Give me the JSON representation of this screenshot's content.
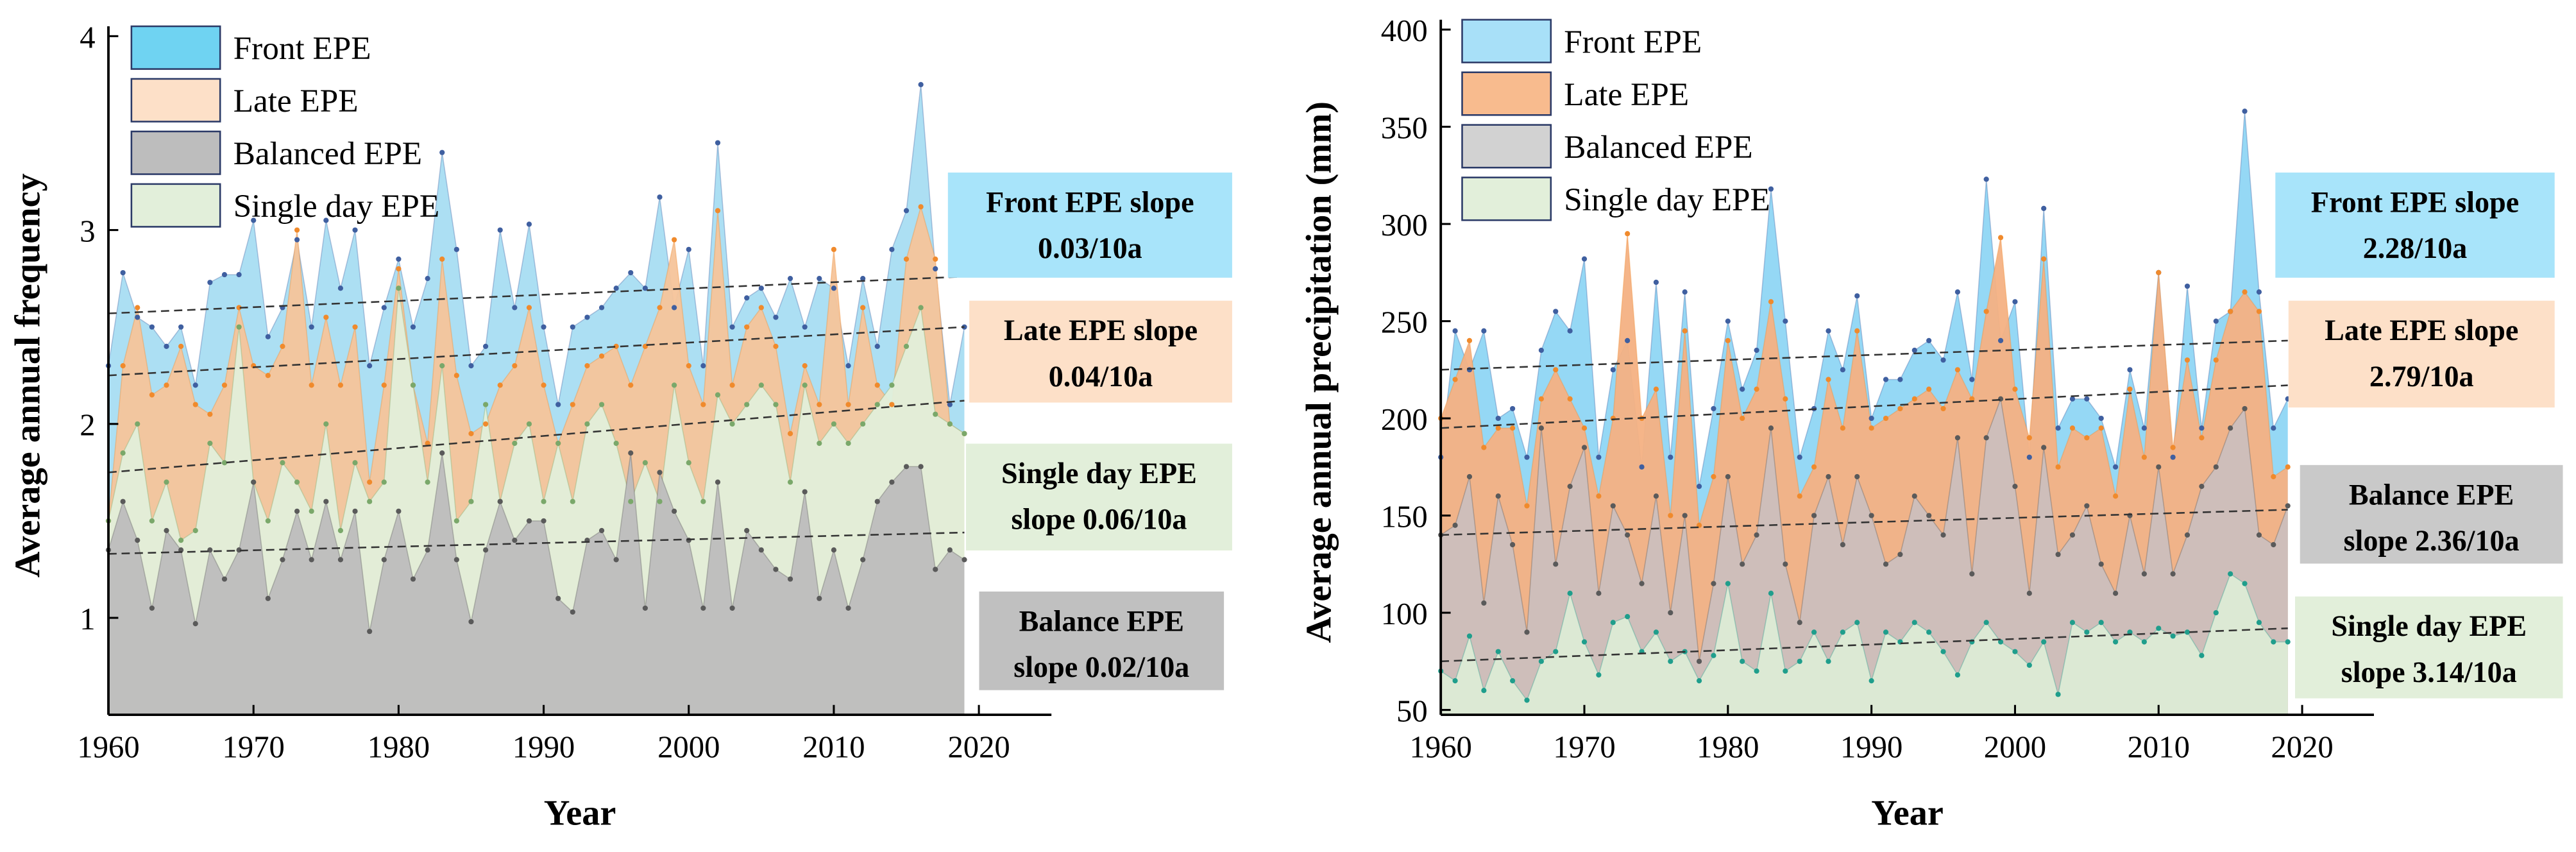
{
  "chart_data": [
    {
      "type": "area",
      "xlabel": "Year",
      "ylabel": "Average annual frequency",
      "x": [
        1960,
        1961,
        1962,
        1963,
        1964,
        1965,
        1966,
        1967,
        1968,
        1969,
        1970,
        1971,
        1972,
        1973,
        1974,
        1975,
        1976,
        1977,
        1978,
        1979,
        1980,
        1981,
        1982,
        1983,
        1984,
        1985,
        1986,
        1987,
        1988,
        1989,
        1990,
        1991,
        1992,
        1993,
        1994,
        1995,
        1996,
        1997,
        1998,
        1999,
        2000,
        2001,
        2002,
        2003,
        2004,
        2005,
        2006,
        2007,
        2008,
        2009,
        2010,
        2011,
        2012,
        2013,
        2014,
        2015,
        2016,
        2017,
        2018,
        2019
      ],
      "xlim": [
        1960,
        2025
      ],
      "xticks": [
        1960,
        1970,
        1980,
        1990,
        2000,
        2010,
        2020
      ],
      "ylim": [
        0.5,
        4
      ],
      "yticks": [
        1,
        2,
        3,
        4
      ],
      "series": [
        {
          "name": "Front EPE",
          "color": "#a8ddf2",
          "legend_color": "#6fd3f2",
          "marker_color": "#3f5fa0",
          "trend": [
            2.57,
            2.76
          ],
          "values": [
            2.3,
            2.78,
            2.55,
            2.5,
            2.4,
            2.5,
            2.2,
            2.73,
            2.77,
            2.77,
            3.05,
            2.45,
            2.6,
            2.95,
            2.5,
            3.05,
            2.7,
            3.0,
            2.3,
            2.6,
            2.85,
            2.5,
            2.75,
            3.4,
            2.9,
            2.3,
            2.4,
            3.0,
            2.6,
            3.03,
            2.5,
            2.1,
            2.5,
            2.55,
            2.6,
            2.7,
            2.78,
            2.7,
            3.17,
            2.6,
            2.9,
            2.3,
            3.45,
            2.5,
            2.65,
            2.7,
            2.55,
            2.75,
            2.5,
            2.75,
            2.7,
            2.3,
            2.75,
            2.4,
            2.9,
            3.1,
            3.75,
            2.8,
            2.1,
            2.5
          ]
        },
        {
          "name": "Late EPE",
          "color": "#f5c49a",
          "legend_color": "#fde0c8",
          "marker_color": "#f08a2c",
          "trend": [
            2.25,
            2.5
          ],
          "values": [
            1.5,
            2.3,
            2.6,
            2.15,
            2.2,
            2.4,
            2.1,
            2.05,
            2.2,
            2.6,
            2.3,
            2.25,
            2.4,
            3.0,
            2.2,
            2.55,
            2.2,
            2.5,
            1.7,
            2.2,
            2.8,
            2.2,
            1.9,
            2.85,
            2.25,
            1.95,
            2.0,
            2.2,
            2.3,
            2.6,
            2.2,
            1.9,
            2.1,
            2.3,
            2.35,
            2.4,
            2.2,
            2.4,
            2.6,
            2.95,
            2.3,
            2.1,
            3.1,
            2.2,
            2.5,
            2.6,
            2.4,
            1.95,
            2.3,
            2.1,
            2.9,
            2.1,
            2.6,
            2.2,
            2.1,
            2.85,
            3.12,
            2.85,
            2.0,
            1.95
          ]
        },
        {
          "name": "Balanced EPE",
          "color": "#bdbdbd",
          "legend_color": "#bdbdbd",
          "marker_color": "#5a5a5a",
          "trend": [
            1.33,
            1.44
          ],
          "values": [
            1.35,
            1.6,
            1.4,
            1.05,
            1.45,
            1.35,
            0.97,
            1.35,
            1.2,
            1.35,
            1.7,
            1.1,
            1.3,
            1.55,
            1.3,
            1.6,
            1.3,
            1.55,
            0.93,
            1.3,
            1.55,
            1.2,
            1.35,
            1.85,
            1.3,
            0.98,
            1.35,
            1.6,
            1.4,
            1.5,
            1.5,
            1.1,
            1.03,
            1.4,
            1.45,
            1.3,
            1.85,
            1.05,
            1.75,
            1.55,
            1.4,
            1.05,
            1.7,
            1.05,
            1.45,
            1.35,
            1.25,
            1.2,
            1.65,
            1.1,
            1.35,
            1.05,
            1.3,
            1.6,
            1.7,
            1.78,
            1.78,
            1.25,
            1.35,
            1.3
          ]
        },
        {
          "name": "Single day EPE",
          "color": "#e2efda",
          "legend_color": "#e2efda",
          "marker_color": "#7aa86a",
          "trend": [
            1.75,
            2.12
          ],
          "values": [
            1.5,
            1.85,
            2.0,
            1.5,
            1.7,
            1.4,
            1.45,
            1.9,
            1.8,
            2.5,
            1.7,
            1.5,
            1.8,
            1.7,
            1.55,
            2.0,
            1.45,
            1.8,
            1.6,
            1.7,
            2.7,
            2.2,
            1.7,
            2.3,
            1.5,
            1.6,
            2.1,
            1.6,
            1.9,
            2.0,
            1.6,
            1.9,
            1.6,
            2.0,
            2.1,
            1.9,
            1.6,
            1.8,
            1.6,
            2.2,
            1.8,
            1.6,
            2.15,
            2.0,
            2.1,
            2.2,
            2.1,
            1.7,
            2.2,
            1.9,
            2.0,
            1.9,
            2.0,
            2.1,
            2.2,
            2.4,
            2.6,
            2.05,
            2.0,
            1.95
          ]
        }
      ],
      "annotations": [
        {
          "lines": [
            "Front EPE slope",
            "0.03/10a"
          ],
          "color": "#a8e4fa"
        },
        {
          "lines": [
            "Late EPE slope",
            "0.04/10a"
          ],
          "color": "#fde0c8"
        },
        {
          "lines": [
            "Single day EPE",
            "slope 0.06/10a"
          ],
          "color": "#e2efda"
        },
        {
          "lines": [
            "Balance EPE",
            "slope 0.02/10a"
          ],
          "color": "#c0c0c0"
        }
      ]
    },
    {
      "type": "area",
      "xlabel": "Year",
      "ylabel": "Average annual precipitation (mm)",
      "x": [
        1960,
        1961,
        1962,
        1963,
        1964,
        1965,
        1966,
        1967,
        1968,
        1969,
        1970,
        1971,
        1972,
        1973,
        1974,
        1975,
        1976,
        1977,
        1978,
        1979,
        1980,
        1981,
        1982,
        1983,
        1984,
        1985,
        1986,
        1987,
        1988,
        1989,
        1990,
        1991,
        1992,
        1993,
        1994,
        1995,
        1996,
        1997,
        1998,
        1999,
        2000,
        2001,
        2002,
        2003,
        2004,
        2005,
        2006,
        2007,
        2008,
        2009,
        2010,
        2011,
        2012,
        2013,
        2014,
        2015,
        2016,
        2017,
        2018,
        2019
      ],
      "xlim": [
        1960,
        2025
      ],
      "xticks": [
        1960,
        1970,
        1980,
        1990,
        2000,
        2010,
        2020
      ],
      "ylim": [
        47.5,
        400
      ],
      "yticks": [
        50,
        100,
        150,
        200,
        250,
        300,
        350,
        400
      ],
      "series": [
        {
          "name": "Front EPE",
          "color": "#8fd6f4",
          "legend_color": "#a8e0f8",
          "marker_color": "#3f5fa0",
          "trend": [
            225,
            240
          ],
          "values": [
            180,
            245,
            225,
            245,
            200,
            205,
            180,
            235,
            255,
            245,
            282,
            180,
            225,
            240,
            175,
            270,
            180,
            265,
            165,
            205,
            250,
            215,
            235,
            318,
            250,
            180,
            205,
            245,
            225,
            263,
            200,
            220,
            220,
            235,
            240,
            230,
            265,
            220,
            323,
            240,
            260,
            180,
            308,
            195,
            210,
            210,
            200,
            175,
            225,
            195,
            275,
            180,
            268,
            195,
            250,
            255,
            358,
            265,
            195,
            210
          ]
        },
        {
          "name": "Late EPE",
          "color": "#f4b183",
          "legend_color": "#f8bb8e",
          "marker_color": "#f08a2c",
          "trend": [
            195,
            217
          ],
          "values": [
            200,
            220,
            240,
            185,
            195,
            195,
            155,
            210,
            225,
            210,
            195,
            160,
            200,
            295,
            200,
            215,
            150,
            245,
            145,
            170,
            240,
            200,
            215,
            260,
            210,
            160,
            175,
            220,
            195,
            245,
            195,
            200,
            205,
            210,
            215,
            205,
            225,
            210,
            255,
            293,
            215,
            190,
            282,
            175,
            195,
            190,
            195,
            160,
            215,
            180,
            275,
            185,
            230,
            190,
            230,
            255,
            265,
            255,
            170,
            175
          ]
        },
        {
          "name": "Balanced EPE",
          "color": "#cbbfbd",
          "legend_color": "#d2d2d2",
          "marker_color": "#5a5a5a",
          "trend": [
            140,
            153
          ],
          "values": [
            140,
            145,
            170,
            105,
            160,
            135,
            90,
            195,
            125,
            165,
            185,
            110,
            155,
            140,
            115,
            160,
            100,
            150,
            75,
            115,
            170,
            125,
            140,
            195,
            125,
            95,
            150,
            170,
            135,
            170,
            150,
            125,
            130,
            160,
            150,
            140,
            190,
            120,
            190,
            210,
            165,
            110,
            185,
            130,
            140,
            155,
            125,
            110,
            150,
            120,
            175,
            120,
            140,
            165,
            175,
            195,
            205,
            140,
            135,
            155
          ]
        },
        {
          "name": "Single day EPE",
          "color": "#dcebd5",
          "legend_color": "#e2efda",
          "marker_color": "#1f9e8c",
          "trend": [
            75,
            92
          ],
          "values": [
            70,
            65,
            88,
            60,
            80,
            65,
            55,
            75,
            80,
            110,
            85,
            68,
            95,
            98,
            80,
            90,
            75,
            80,
            65,
            78,
            115,
            75,
            70,
            110,
            70,
            75,
            90,
            75,
            90,
            95,
            65,
            90,
            85,
            95,
            90,
            80,
            68,
            85,
            95,
            85,
            80,
            73,
            85,
            58,
            95,
            90,
            95,
            85,
            90,
            85,
            92,
            88,
            90,
            78,
            100,
            120,
            115,
            95,
            85,
            85
          ]
        }
      ],
      "annotations": [
        {
          "lines": [
            "Front EPE slope",
            "2.28/10a"
          ],
          "color": "#a8e4fa"
        },
        {
          "lines": [
            "Late EPE slope",
            "2.79/10a"
          ],
          "color": "#fde0c8"
        },
        {
          "lines": [
            "Balance EPE",
            "slope 2.36/10a"
          ],
          "color": "#c9c9c9"
        },
        {
          "lines": [
            "Single day EPE",
            "slope 3.14/10a"
          ],
          "color": "#e2efda"
        }
      ]
    }
  ]
}
